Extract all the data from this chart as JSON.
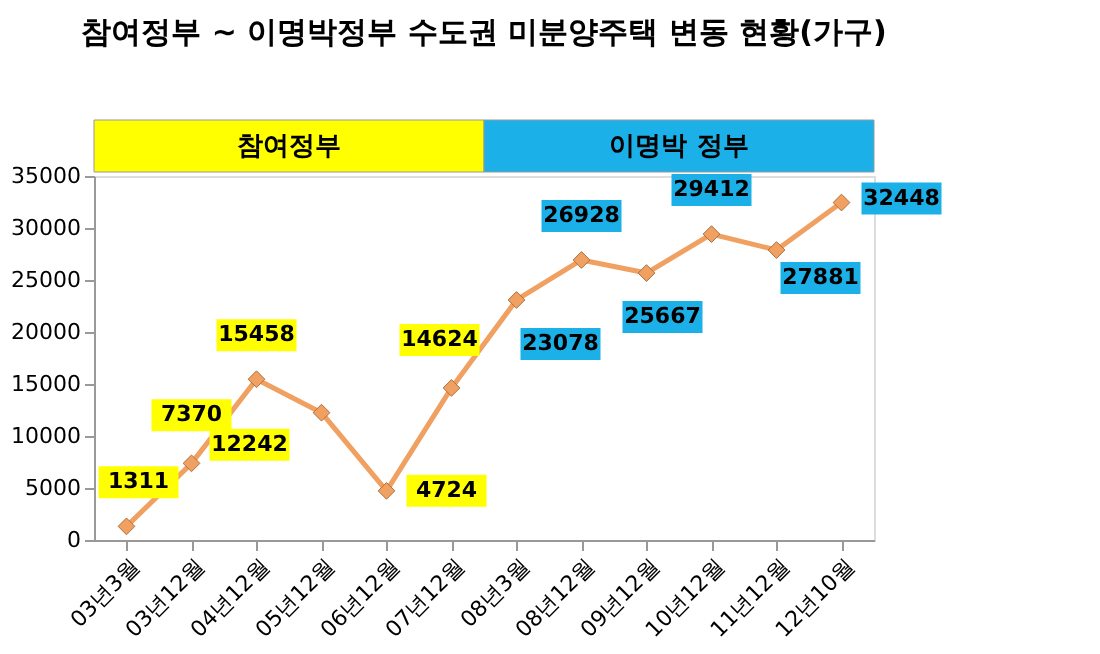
{
  "chart_data": {
    "type": "line",
    "title": "참여정부 ~ 이명박정부 수도권 미분양주택 변동 현황(가구)",
    "categories": [
      "03년3월",
      "03년12월",
      "04년12월",
      "05년12월",
      "06년12월",
      "07년12월",
      "08년3월",
      "08년12월",
      "09년12월",
      "10년12월",
      "11년12월",
      "12년10월"
    ],
    "series": [
      {
        "color": "#f0a060",
        "values": [
          1311,
          7370,
          15458,
          12242,
          4724,
          14624,
          23078,
          26928,
          25667,
          29412,
          27881,
          32448
        ]
      }
    ],
    "ylim": [
      0,
      35000
    ],
    "yticks": [
      0,
      5000,
      10000,
      15000,
      20000,
      25000,
      30000,
      35000
    ],
    "annotations": [
      "참여정부",
      "이명박 정부"
    ],
    "marker": "diamond",
    "line_style": "solid",
    "data_labels": true,
    "grid": false
  }
}
